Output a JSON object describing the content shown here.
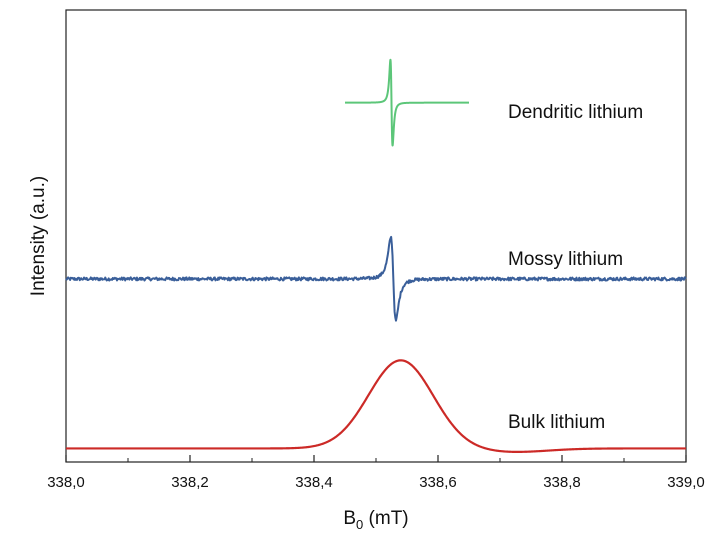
{
  "chart_data": {
    "type": "line",
    "title": "",
    "xlabel": "B",
    "xlabel_subscript": "0",
    "xlabel_unit": " (mT)",
    "ylabel": "Intensity (a.u.)",
    "xlim": [
      338.0,
      339.0
    ],
    "x_ticks": [
      338.0,
      338.2,
      338.4,
      338.6,
      338.8,
      339.0
    ],
    "x_tick_labels": [
      "338,0",
      "338,2",
      "338,4",
      "338,6",
      "338,8",
      "339,0"
    ],
    "grid": false,
    "legend": "none",
    "series": [
      {
        "name": "Dendritic lithium",
        "color": "#5cc679",
        "shape": "derivative",
        "x_range": [
          338.45,
          338.65
        ],
        "center": 338.525,
        "half_width": 0.003,
        "baseline": 0.795,
        "amplitude": 0.19,
        "noise": 0
      },
      {
        "name": "Mossy lithium",
        "color": "#3a5f9a",
        "shape": "derivative",
        "x_range": [
          338.0,
          339.0
        ],
        "center": 338.528,
        "half_width": 0.007,
        "baseline": 0.405,
        "amplitude": 0.185,
        "noise": 0.0035
      },
      {
        "name": "Bulk lithium",
        "color": "#cc2a27",
        "shape": "gaussian",
        "x_range": [
          338.0,
          339.0
        ],
        "center": 338.54,
        "sigma": 0.052,
        "baseline": 0.03,
        "amplitude": 0.195,
        "noise": 0
      }
    ]
  }
}
